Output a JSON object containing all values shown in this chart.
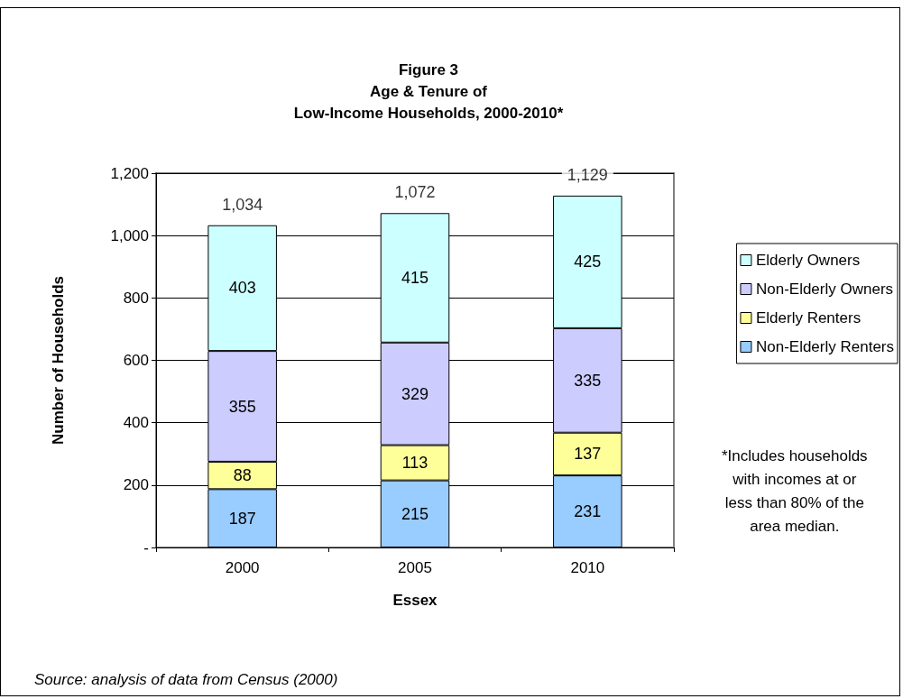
{
  "chart_data": {
    "type": "bar",
    "stacked": true,
    "title": "Figure 3\nAge & Tenure of\nLow-Income Households, 2000-2010*",
    "xlabel": "Essex",
    "ylabel": "Number of Households",
    "categories": [
      "2000",
      "2005",
      "2010"
    ],
    "series": [
      {
        "name": "Non-Elderly Renters",
        "color": "#99ccff",
        "values": [
          187,
          215,
          231
        ]
      },
      {
        "name": "Elderly Renters",
        "color": "#ffff99",
        "values": [
          88,
          113,
          137
        ]
      },
      {
        "name": "Non-Elderly Owners",
        "color": "#ccccff",
        "values": [
          355,
          329,
          335
        ]
      },
      {
        "name": "Elderly Owners",
        "color": "#ccffff",
        "values": [
          403,
          415,
          425
        ]
      }
    ],
    "data_labels": true,
    "totals": [
      "1,034",
      "1,072",
      "1,129"
    ],
    "ylim": [
      0,
      1200
    ],
    "yticks": [
      {
        "value": 0,
        "label": "-"
      },
      200,
      400,
      600,
      800,
      {
        "value": 1000,
        "label": "1,000"
      },
      {
        "value": 1200,
        "label": "1,200"
      }
    ],
    "grid": "y",
    "legend": "right",
    "annotations": [
      "*Includes households\nwith incomes at or\nless than 80% of the\narea median.",
      "Source: analysis of data from Census (2000)"
    ]
  }
}
